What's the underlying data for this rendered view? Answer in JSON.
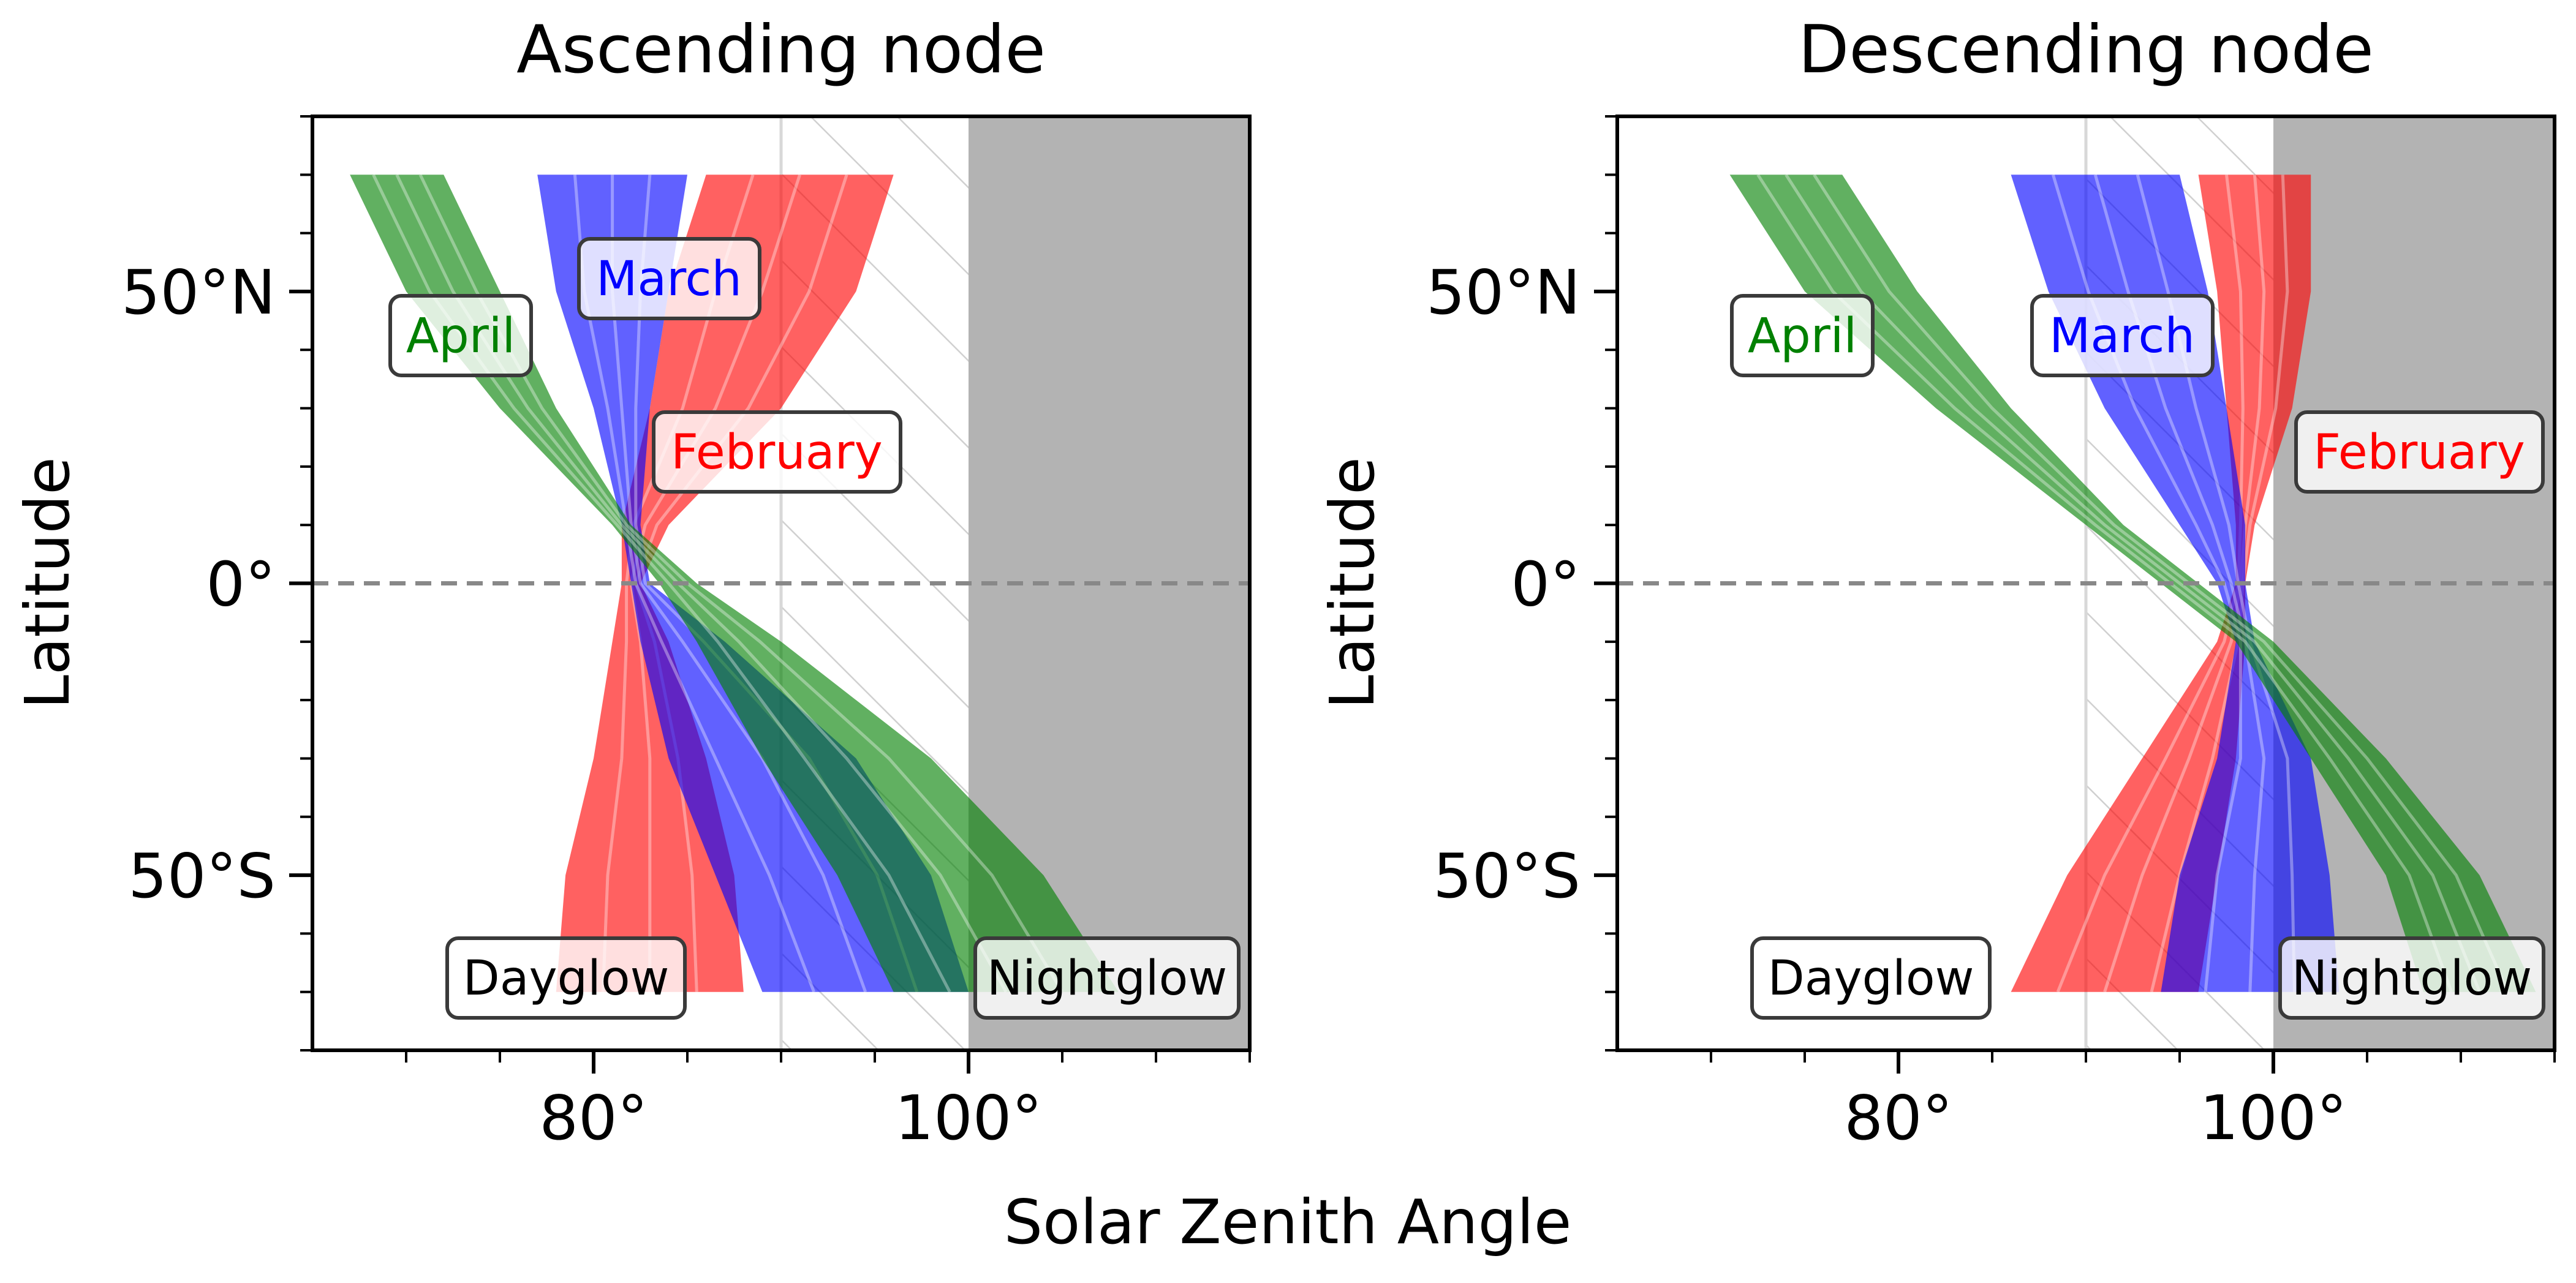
{
  "chart_data": [
    {
      "type": "area",
      "title": "Ascending node",
      "xlabel": "Solar Zenith Angle",
      "ylabel": "Latitude",
      "xlim": [
        65,
        115
      ],
      "ylim": [
        -80,
        80
      ],
      "xticks": [
        {
          "value": 80,
          "label": "80°"
        },
        {
          "value": 100,
          "label": "100°"
        }
      ],
      "yticks": [
        {
          "value": 50,
          "label": "50°N"
        },
        {
          "value": 0,
          "label": "0°"
        },
        {
          "value": -50,
          "label": "50°S"
        }
      ],
      "reference_lines": {
        "equator": 0,
        "hatched_region_sza": [
          90,
          100
        ],
        "night_shading_sza": [
          100,
          115
        ]
      },
      "series": [
        {
          "name": "February",
          "color": "#ff0000",
          "lat": [
            70,
            50,
            30,
            10,
            0,
            -10,
            -30,
            -50,
            -70
          ],
          "sza_min": [
            86,
            84,
            83,
            81.5,
            81.5,
            81,
            80,
            78.5,
            78
          ],
          "sza_max": [
            96,
            94,
            90,
            84,
            82.5,
            84,
            86,
            87.5,
            88
          ]
        },
        {
          "name": "March",
          "color": "#0000ff",
          "lat": [
            70,
            50,
            30,
            10,
            0,
            -10,
            -30,
            -50,
            -70
          ],
          "sza_min": [
            77,
            78,
            80,
            81.5,
            82,
            82.5,
            84,
            86.5,
            89
          ],
          "sza_max": [
            85,
            84,
            83,
            82.5,
            83,
            87,
            94,
            98,
            100
          ]
        },
        {
          "name": "April",
          "color": "#008000",
          "lat": [
            70,
            50,
            30,
            10,
            0,
            -10,
            -30,
            -50,
            -70
          ],
          "sza_min": [
            67,
            70,
            75,
            81,
            83.5,
            85.5,
            89,
            93,
            96
          ],
          "sza_max": [
            72,
            75,
            78,
            82,
            85.5,
            90,
            98,
            104,
            108
          ]
        }
      ],
      "annotations": [
        {
          "name": "March",
          "text": "March",
          "color": "#0000ff"
        },
        {
          "name": "April",
          "text": "April",
          "color": "#008000"
        },
        {
          "name": "February",
          "text": "February",
          "color": "#ff0000"
        },
        {
          "name": "Dayglow",
          "text": "Dayglow",
          "color": "#000000"
        },
        {
          "name": "Nightglow",
          "text": "Nightglow",
          "color": "#000000"
        }
      ]
    },
    {
      "type": "area",
      "title": "Descending node",
      "xlabel": "Solar Zenith Angle",
      "ylabel": "Latitude",
      "xlim": [
        65,
        115
      ],
      "ylim": [
        -80,
        80
      ],
      "xticks": [
        {
          "value": 80,
          "label": "80°"
        },
        {
          "value": 100,
          "label": "100°"
        }
      ],
      "yticks": [
        {
          "value": 50,
          "label": "50°N"
        },
        {
          "value": 0,
          "label": "0°"
        },
        {
          "value": -50,
          "label": "50°S"
        }
      ],
      "reference_lines": {
        "equator": 0,
        "hatched_region_sza": [
          90,
          100
        ],
        "night_shading_sza": [
          100,
          115
        ]
      },
      "series": [
        {
          "name": "February",
          "color": "#ff0000",
          "lat": [
            70,
            50,
            30,
            10,
            0,
            -10,
            -30,
            -50,
            -70
          ],
          "sza_min": [
            96,
            97,
            97.5,
            98,
            98,
            97,
            93,
            89,
            86
          ],
          "sza_max": [
            102,
            102,
            101,
            99,
            98.5,
            98.5,
            98,
            97,
            96
          ]
        },
        {
          "name": "March",
          "color": "#0000ff",
          "lat": [
            70,
            50,
            30,
            10,
            0,
            -10,
            -30,
            -50,
            -70
          ],
          "sza_min": [
            86,
            88,
            91,
            95,
            97,
            98,
            97,
            95,
            94
          ],
          "sza_max": [
            95,
            96.5,
            97.5,
            98.5,
            98.5,
            99,
            102,
            103,
            103.5
          ]
        },
        {
          "name": "April",
          "color": "#008000",
          "lat": [
            70,
            50,
            30,
            10,
            0,
            -10,
            -30,
            -50,
            -70
          ],
          "sza_min": [
            71,
            75,
            82,
            90,
            94,
            98,
            102,
            106,
            108
          ],
          "sza_max": [
            77,
            81,
            86,
            92,
            96,
            100,
            106,
            111,
            114
          ]
        }
      ],
      "annotations": [
        {
          "name": "April",
          "text": "April",
          "color": "#008000"
        },
        {
          "name": "March",
          "text": "March",
          "color": "#0000ff"
        },
        {
          "name": "February",
          "text": "February",
          "color": "#ff0000"
        },
        {
          "name": "Dayglow",
          "text": "Dayglow",
          "color": "#000000"
        },
        {
          "name": "Nightglow",
          "text": "Nightglow",
          "color": "#000000"
        }
      ]
    }
  ],
  "figure": {
    "shared_xlabel": "Solar Zenith Angle"
  },
  "colors": {
    "night_shading": "#b3b3b3",
    "hatch": "#d0d0d0",
    "equator_line": "#888888",
    "box_edge": "#3a3a3a"
  }
}
